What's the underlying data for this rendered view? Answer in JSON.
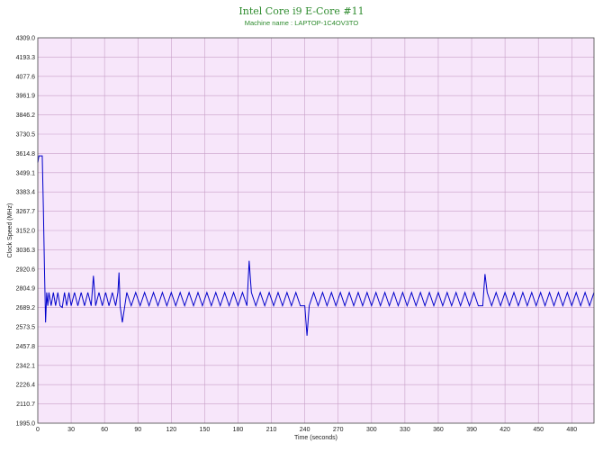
{
  "chart_data": {
    "type": "line",
    "title": "Intel Core i9 E-Core #11",
    "subtitle": "Machine name : LAPTOP-1C4OV3TO",
    "xlabel": "Time (seconds)",
    "ylabel": "Clock Speed (MHz)",
    "xlim": [
      0,
      500
    ],
    "ylim": [
      1995.0,
      4309.0
    ],
    "x_ticks": [
      0,
      30,
      60,
      90,
      120,
      150,
      180,
      210,
      240,
      270,
      300,
      330,
      360,
      390,
      420,
      450,
      480
    ],
    "y_ticks": [
      "1995.0",
      "2110.7",
      "2226.4",
      "2342.1",
      "2457.8",
      "2573.5",
      "2689.2",
      "2804.9",
      "2920.6",
      "3036.3",
      "3152.0",
      "3267.7",
      "3383.4",
      "3499.1",
      "3614.8",
      "3730.5",
      "3846.2",
      "3961.9",
      "4077.6",
      "4193.3",
      "4309.0"
    ],
    "grid": true,
    "series_color": "#0000cc",
    "plot_background": "#f7e6fa",
    "grid_color": "#c8a0c8",
    "series": [
      {
        "x": [
          0,
          1,
          2,
          3,
          4,
          5,
          6,
          7,
          8,
          9,
          10,
          12,
          14,
          16,
          18,
          20,
          22,
          24,
          26,
          28,
          30,
          33,
          36,
          39,
          42,
          45,
          48,
          50,
          52,
          55,
          58,
          61,
          64,
          67,
          70,
          72,
          73,
          74,
          76,
          80,
          84,
          88,
          92,
          96,
          100,
          104,
          108,
          112,
          116,
          120,
          124,
          128,
          132,
          136,
          140,
          144,
          148,
          152,
          156,
          160,
          164,
          168,
          172,
          176,
          180,
          184,
          188,
          190,
          192,
          196,
          200,
          204,
          208,
          212,
          216,
          220,
          224,
          228,
          232,
          236,
          240,
          242,
          244,
          248,
          252,
          256,
          260,
          264,
          268,
          272,
          276,
          280,
          284,
          288,
          292,
          296,
          300,
          304,
          308,
          312,
          316,
          320,
          324,
          328,
          332,
          336,
          340,
          344,
          348,
          352,
          356,
          360,
          364,
          368,
          372,
          376,
          380,
          384,
          388,
          392,
          396,
          400,
          402,
          404,
          408,
          412,
          416,
          420,
          424,
          428,
          432,
          436,
          440,
          444,
          448,
          452,
          456,
          460,
          464,
          468,
          472,
          476,
          480,
          484,
          488,
          492,
          496,
          500
        ],
        "y": [
          3560,
          3600,
          3600,
          3600,
          3600,
          3290,
          2920,
          2600,
          2780,
          2700,
          2780,
          2700,
          2780,
          2700,
          2780,
          2700,
          2690,
          2780,
          2700,
          2780,
          2700,
          2780,
          2700,
          2780,
          2700,
          2780,
          2700,
          2880,
          2700,
          2780,
          2700,
          2780,
          2700,
          2780,
          2700,
          2780,
          2900,
          2700,
          2600,
          2780,
          2700,
          2780,
          2700,
          2780,
          2700,
          2780,
          2700,
          2780,
          2700,
          2780,
          2700,
          2780,
          2700,
          2780,
          2700,
          2780,
          2700,
          2780,
          2700,
          2780,
          2700,
          2780,
          2700,
          2780,
          2700,
          2780,
          2700,
          2970,
          2780,
          2700,
          2780,
          2700,
          2780,
          2700,
          2780,
          2700,
          2780,
          2700,
          2780,
          2700,
          2700,
          2520,
          2700,
          2780,
          2700,
          2780,
          2700,
          2780,
          2700,
          2780,
          2700,
          2780,
          2700,
          2780,
          2700,
          2780,
          2700,
          2780,
          2700,
          2780,
          2700,
          2780,
          2700,
          2780,
          2700,
          2780,
          2700,
          2780,
          2700,
          2780,
          2700,
          2780,
          2700,
          2780,
          2700,
          2780,
          2700,
          2780,
          2700,
          2780,
          2700,
          2700,
          2890,
          2780,
          2700,
          2780,
          2700,
          2780,
          2700,
          2780,
          2700,
          2780,
          2700,
          2780,
          2700,
          2780,
          2700,
          2780,
          2700,
          2780,
          2700,
          2780,
          2700,
          2780,
          2700,
          2780,
          2700,
          2780
        ]
      }
    ]
  }
}
